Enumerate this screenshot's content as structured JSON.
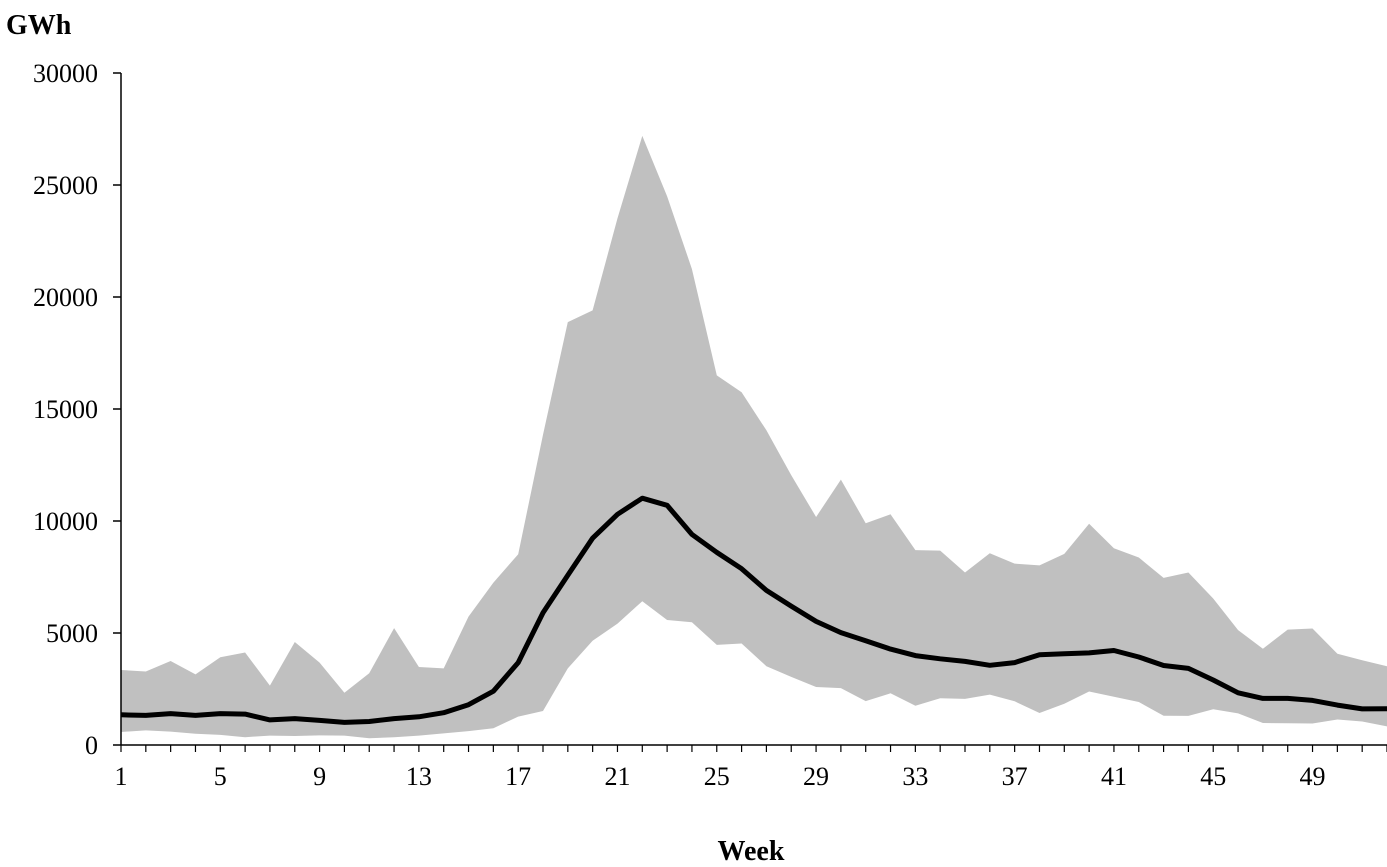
{
  "chart_data": {
    "type": "area",
    "title": "",
    "ylabel": "GWh",
    "xlabel": "Week",
    "ylim": [
      0,
      30000
    ],
    "xlim": [
      1,
      52
    ],
    "y_ticks": [
      0,
      5000,
      10000,
      15000,
      20000,
      25000,
      30000
    ],
    "y_tick_labels": [
      "0",
      "5000",
      "10000",
      "15000",
      "20000",
      "25000",
      "30000"
    ],
    "x_ticks": [
      1,
      5,
      9,
      13,
      17,
      21,
      25,
      29,
      33,
      37,
      41,
      45,
      49
    ],
    "x_tick_labels": [
      "1",
      "5",
      "9",
      "13",
      "17",
      "21",
      "25",
      "29",
      "33",
      "37",
      "41",
      "45",
      "49"
    ],
    "grid": false,
    "legend": "none",
    "colors": {
      "band": "#c0c0c0",
      "line": "#000000",
      "axis": "#000000"
    },
    "x": [
      1,
      2,
      3,
      4,
      5,
      6,
      7,
      8,
      9,
      10,
      11,
      12,
      13,
      14,
      15,
      16,
      17,
      18,
      19,
      20,
      21,
      22,
      23,
      24,
      25,
      26,
      27,
      28,
      29,
      30,
      31,
      32,
      33,
      34,
      35,
      36,
      37,
      38,
      39,
      40,
      41,
      42,
      43,
      44,
      45,
      46,
      47,
      48,
      49,
      50,
      51,
      52
    ],
    "series": [
      {
        "role": "band-upper",
        "values": [
          3350,
          3280,
          3750,
          3150,
          3920,
          4130,
          2650,
          4600,
          3680,
          2330,
          3200,
          5220,
          3480,
          3420,
          5730,
          7250,
          8520,
          13850,
          18880,
          19400,
          23520,
          27190,
          24500,
          21250,
          16500,
          15750,
          14050,
          12050,
          10180,
          11850,
          9900,
          10300,
          8700,
          8680,
          7700,
          8560,
          8100,
          8020,
          8530,
          9880,
          8780,
          8370,
          7460,
          7700,
          6540,
          5130,
          4300,
          5150,
          5200,
          4070,
          3780,
          3520
        ]
      },
      {
        "role": "band-lower",
        "values": [
          580,
          650,
          600,
          500,
          450,
          350,
          420,
          400,
          430,
          420,
          300,
          350,
          420,
          520,
          620,
          750,
          1270,
          1520,
          3420,
          4650,
          5420,
          6420,
          5580,
          5480,
          4470,
          4530,
          3520,
          3040,
          2590,
          2540,
          1960,
          2310,
          1750,
          2090,
          2060,
          2250,
          1950,
          1430,
          1840,
          2390,
          2150,
          1920,
          1310,
          1300,
          1600,
          1410,
          980,
          970,
          960,
          1140,
          1050,
          830
        ]
      },
      {
        "role": "mean",
        "values": [
          1350,
          1320,
          1400,
          1320,
          1400,
          1380,
          1120,
          1180,
          1100,
          1010,
          1050,
          1180,
          1260,
          1440,
          1800,
          2400,
          3680,
          5900,
          7580,
          9230,
          10300,
          11020,
          10700,
          9400,
          8600,
          7870,
          6900,
          6200,
          5520,
          5020,
          4650,
          4280,
          3990,
          3850,
          3730,
          3560,
          3680,
          4030,
          4070,
          4110,
          4220,
          3930,
          3550,
          3420,
          2900,
          2330,
          2080,
          2080,
          1990,
          1780,
          1610,
          1620
        ]
      }
    ]
  }
}
